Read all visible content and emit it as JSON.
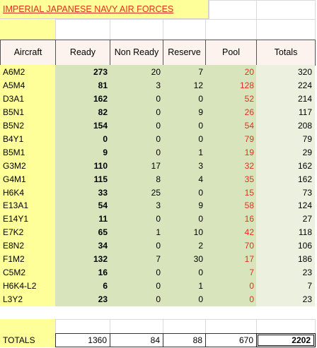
{
  "title": "IMPERIAL JAPANESE NAVY AIR FORCES",
  "table": {
    "header": [
      "Aircraft",
      "Ready",
      "Non Ready",
      "Reserve",
      "Pool",
      "Totals"
    ],
    "rows": [
      [
        "A6M2",
        273,
        20,
        7,
        20,
        320
      ],
      [
        "A5M4",
        81,
        3,
        12,
        128,
        224
      ],
      [
        "D3A1",
        162,
        0,
        0,
        52,
        214
      ],
      [
        "B5N1",
        82,
        0,
        9,
        26,
        117
      ],
      [
        "B5N2",
        154,
        0,
        0,
        54,
        208
      ],
      [
        "B4Y1",
        0,
        0,
        0,
        79,
        79
      ],
      [
        "B5M1",
        9,
        0,
        1,
        19,
        29
      ],
      [
        "G3M2",
        110,
        17,
        3,
        32,
        162
      ],
      [
        "G4M1",
        115,
        8,
        4,
        35,
        162
      ],
      [
        "H6K4",
        33,
        25,
        0,
        15,
        73
      ],
      [
        "E13A1",
        54,
        3,
        9,
        58,
        124
      ],
      [
        "E14Y1",
        11,
        0,
        0,
        16,
        27
      ],
      [
        "E7K2",
        65,
        1,
        10,
        42,
        118
      ],
      [
        "E8N2",
        34,
        0,
        2,
        70,
        106
      ],
      [
        "F1M2",
        132,
        7,
        30,
        17,
        186
      ],
      [
        "C5M2",
        16,
        0,
        0,
        7,
        23
      ],
      [
        "H6K4-L2",
        6,
        0,
        1,
        0,
        7
      ],
      [
        "L3Y2",
        23,
        0,
        0,
        0,
        23
      ]
    ],
    "totals": [
      "TOTALS",
      1360,
      84,
      88,
      670,
      2202
    ]
  }
}
